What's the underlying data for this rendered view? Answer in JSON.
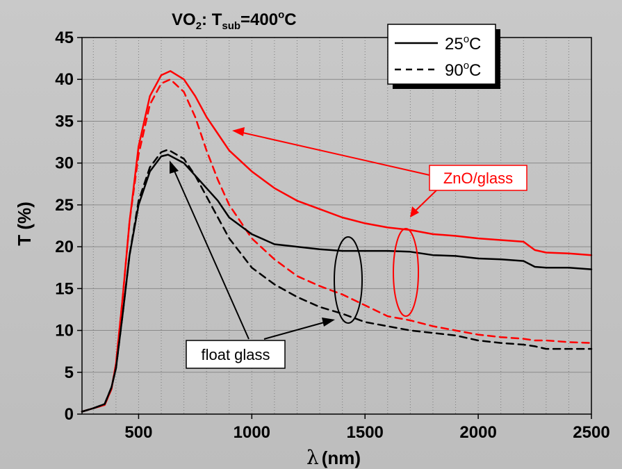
{
  "chart_data": {
    "type": "line",
    "title": {
      "main": "VO",
      "sub1": "2",
      "mid": ": T",
      "sub2": "sub",
      "end": "=400",
      "sup": "o",
      "unit": "C"
    },
    "xlabel": {
      "symbol": "λ",
      "unit": "(nm)"
    },
    "ylabel": "T (%)",
    "xlim": [
      250,
      2500
    ],
    "ylim": [
      0,
      45
    ],
    "xticks": [
      500,
      1000,
      1500,
      2000,
      2500
    ],
    "yticks": [
      0,
      5,
      10,
      15,
      20,
      25,
      30,
      35,
      40,
      45
    ],
    "grid": {
      "x_dotted": true,
      "y_solid": true
    },
    "legend": {
      "placement": "top-right",
      "entries": [
        {
          "label": "25",
          "sup": "o",
          "unit": "C",
          "style": "solid"
        },
        {
          "label": "90",
          "sup": "o",
          "unit": "C",
          "style": "dashed"
        }
      ]
    },
    "annotations": [
      {
        "text": "ZnO/glass",
        "color": "#ff0000"
      },
      {
        "text": "float glass",
        "color": "#000000"
      }
    ],
    "series": [
      {
        "group": "ZnO/glass",
        "temperature": "25oC",
        "color": "#ff0000",
        "style": "solid",
        "x": [
          250,
          300,
          350,
          380,
          400,
          430,
          460,
          500,
          550,
          600,
          640,
          700,
          750,
          800,
          850,
          900,
          1000,
          1100,
          1200,
          1300,
          1400,
          1500,
          1600,
          1700,
          1800,
          1900,
          2000,
          2100,
          2200,
          2250,
          2300,
          2400,
          2500
        ],
        "y": [
          0.3,
          0.7,
          1.1,
          3,
          6,
          14,
          23,
          32,
          38,
          40.5,
          41,
          40,
          38,
          35.5,
          33.5,
          31.5,
          29,
          27,
          25.5,
          24.5,
          23.5,
          22.8,
          22.3,
          22,
          21.5,
          21.3,
          21,
          20.8,
          20.6,
          19.6,
          19.3,
          19.2,
          19
        ]
      },
      {
        "group": "ZnO/glass",
        "temperature": "90oC",
        "color": "#ff0000",
        "style": "dashed",
        "x": [
          250,
          300,
          350,
          380,
          400,
          430,
          460,
          500,
          550,
          600,
          640,
          700,
          750,
          800,
          850,
          900,
          1000,
          1100,
          1200,
          1300,
          1400,
          1500,
          1600,
          1700,
          1800,
          1900,
          2000,
          2100,
          2200,
          2250,
          2300,
          2400,
          2500
        ],
        "y": [
          0.3,
          0.7,
          1.1,
          3,
          6,
          14,
          23,
          31,
          37,
          39.5,
          40,
          38.5,
          35.5,
          31.5,
          28,
          25,
          21,
          18.5,
          16.5,
          15.3,
          14.3,
          13,
          11.7,
          11.2,
          10.5,
          10,
          9.5,
          9.2,
          9,
          8.8,
          8.8,
          8.6,
          8.5
        ]
      },
      {
        "group": "float glass",
        "temperature": "25oC",
        "color": "#000000",
        "style": "solid",
        "x": [
          250,
          300,
          350,
          380,
          400,
          430,
          460,
          500,
          550,
          600,
          630,
          700,
          750,
          800,
          850,
          900,
          1000,
          1100,
          1200,
          1300,
          1400,
          1500,
          1600,
          1700,
          1800,
          1900,
          2000,
          2100,
          2200,
          2250,
          2300,
          2400,
          2500
        ],
        "y": [
          0.3,
          0.7,
          1.2,
          3.2,
          5.5,
          12,
          19,
          25,
          29,
          30.8,
          31,
          30,
          28.5,
          27,
          25.5,
          23.5,
          21.5,
          20.3,
          20,
          19.7,
          19.5,
          19.5,
          19.5,
          19.4,
          19,
          18.9,
          18.6,
          18.5,
          18.3,
          17.6,
          17.5,
          17.5,
          17.3
        ]
      },
      {
        "group": "float glass",
        "temperature": "90oC",
        "color": "#000000",
        "style": "dashed",
        "x": [
          250,
          300,
          350,
          380,
          400,
          430,
          460,
          500,
          550,
          600,
          630,
          700,
          750,
          800,
          850,
          900,
          1000,
          1100,
          1200,
          1300,
          1400,
          1500,
          1600,
          1700,
          1800,
          1900,
          2000,
          2100,
          2200,
          2250,
          2300,
          2400,
          2500
        ],
        "y": [
          0.3,
          0.7,
          1.2,
          3.2,
          5.5,
          12,
          19,
          25.5,
          29.5,
          31.3,
          31.6,
          30.5,
          28.5,
          26,
          23.5,
          21,
          17.5,
          15.5,
          14,
          12.8,
          12,
          11,
          10.5,
          10,
          9.7,
          9.4,
          8.8,
          8.5,
          8.3,
          8.1,
          7.8,
          7.8,
          7.8
        ]
      }
    ]
  }
}
